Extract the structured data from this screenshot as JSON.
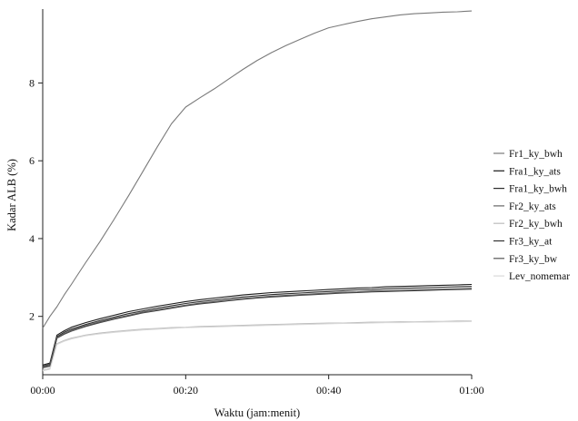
{
  "chart_data": {
    "type": "line",
    "title": "",
    "xlabel": "Waktu (jam:menit)",
    "ylabel": "Kadar ALB (%)",
    "x_ticks": [
      "00:00",
      "00:20",
      "00:40",
      "01:00"
    ],
    "y_ticks": [
      "2",
      "4",
      "6",
      "8"
    ],
    "xlim": [
      0,
      60
    ],
    "ylim": [
      0.5,
      9.9
    ],
    "legend_position": "right",
    "x": [
      0,
      1,
      2,
      3,
      4,
      5,
      6,
      8,
      10,
      12,
      14,
      16,
      18,
      20,
      22,
      24,
      26,
      28,
      30,
      32,
      34,
      36,
      38,
      40,
      42,
      44,
      46,
      48,
      50,
      52,
      54,
      56,
      58,
      60
    ],
    "series": [
      {
        "name": "Fr1_ky_bwh",
        "color": "#7a7a7a",
        "values": [
          1.7,
          2.0,
          2.25,
          2.55,
          2.82,
          3.1,
          3.38,
          3.92,
          4.5,
          5.1,
          5.72,
          6.35,
          6.95,
          7.38,
          7.62,
          7.85,
          8.1,
          8.35,
          8.58,
          8.78,
          8.96,
          9.12,
          9.28,
          9.42,
          9.5,
          9.58,
          9.65,
          9.7,
          9.75,
          9.78,
          9.8,
          9.82,
          9.83,
          9.85
        ]
      },
      {
        "name": "Fra1_ky_ats",
        "color": "#1a1a1a",
        "values": [
          0.75,
          0.8,
          1.52,
          1.63,
          1.72,
          1.78,
          1.84,
          1.94,
          2.03,
          2.12,
          2.19,
          2.26,
          2.32,
          2.38,
          2.43,
          2.47,
          2.51,
          2.55,
          2.58,
          2.61,
          2.63,
          2.65,
          2.67,
          2.69,
          2.71,
          2.73,
          2.74,
          2.76,
          2.77,
          2.78,
          2.79,
          2.8,
          2.81,
          2.82
        ]
      },
      {
        "name": "Fra1_ky_bwh",
        "color": "#2a2a2a",
        "values": [
          0.72,
          0.77,
          1.48,
          1.59,
          1.67,
          1.73,
          1.79,
          1.89,
          1.98,
          2.07,
          2.14,
          2.21,
          2.27,
          2.33,
          2.38,
          2.42,
          2.46,
          2.5,
          2.53,
          2.56,
          2.58,
          2.6,
          2.62,
          2.64,
          2.66,
          2.68,
          2.69,
          2.71,
          2.72,
          2.73,
          2.74,
          2.75,
          2.76,
          2.77
        ]
      },
      {
        "name": "Fr2_ky_ats",
        "color": "#666666",
        "values": [
          0.7,
          0.75,
          1.46,
          1.56,
          1.64,
          1.7,
          1.76,
          1.86,
          1.95,
          2.03,
          2.11,
          2.17,
          2.23,
          2.29,
          2.34,
          2.38,
          2.42,
          2.46,
          2.49,
          2.52,
          2.54,
          2.56,
          2.58,
          2.6,
          2.62,
          2.63,
          2.65,
          2.66,
          2.67,
          2.68,
          2.69,
          2.7,
          2.71,
          2.72
        ]
      },
      {
        "name": "Fr2_ky_bwh",
        "color": "#bdbdbd",
        "values": [
          0.62,
          0.66,
          1.3,
          1.38,
          1.44,
          1.48,
          1.52,
          1.57,
          1.61,
          1.64,
          1.67,
          1.69,
          1.71,
          1.72,
          1.74,
          1.75,
          1.76,
          1.77,
          1.78,
          1.79,
          1.8,
          1.81,
          1.82,
          1.83,
          1.83,
          1.84,
          1.85,
          1.85,
          1.86,
          1.86,
          1.87,
          1.87,
          1.88,
          1.88
        ]
      },
      {
        "name": "Fr3_ky_at",
        "color": "#333333",
        "values": [
          0.68,
          0.72,
          1.44,
          1.54,
          1.62,
          1.68,
          1.74,
          1.84,
          1.93,
          2.01,
          2.09,
          2.15,
          2.21,
          2.27,
          2.32,
          2.36,
          2.4,
          2.44,
          2.47,
          2.5,
          2.52,
          2.54,
          2.56,
          2.58,
          2.6,
          2.61,
          2.63,
          2.64,
          2.65,
          2.66,
          2.67,
          2.68,
          2.69,
          2.7
        ]
      },
      {
        "name": "Fr3_ky_bw",
        "color": "#555555",
        "values": [
          0.69,
          0.73,
          1.45,
          1.55,
          1.63,
          1.69,
          1.75,
          1.85,
          1.94,
          2.02,
          2.1,
          2.16,
          2.22,
          2.28,
          2.33,
          2.37,
          2.41,
          2.45,
          2.48,
          2.51,
          2.53,
          2.55,
          2.57,
          2.59,
          2.61,
          2.62,
          2.64,
          2.65,
          2.66,
          2.67,
          2.68,
          2.69,
          2.7,
          2.71
        ]
      },
      {
        "name": "Lev_nomemar",
        "color": "#d9d9d9",
        "values": [
          0.6,
          0.64,
          1.28,
          1.36,
          1.42,
          1.46,
          1.5,
          1.55,
          1.59,
          1.62,
          1.65,
          1.67,
          1.69,
          1.71,
          1.72,
          1.73,
          1.74,
          1.75,
          1.76,
          1.77,
          1.78,
          1.79,
          1.8,
          1.81,
          1.82,
          1.82,
          1.83,
          1.84,
          1.84,
          1.85,
          1.85,
          1.86,
          1.86,
          1.87
        ]
      }
    ]
  }
}
